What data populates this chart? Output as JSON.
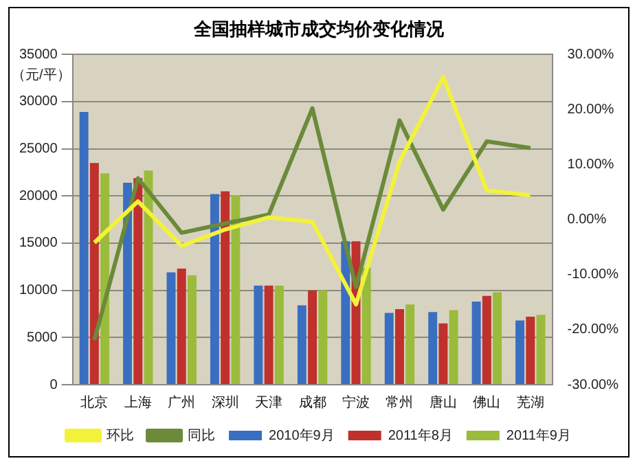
{
  "chart_data": {
    "type": "bar",
    "title": "全国抽样城市成交均价变化情况",
    "ylabel": "（元/平）",
    "categories": [
      "北京",
      "上海",
      "广州",
      "深圳",
      "天津",
      "成都",
      "宁波",
      "常州",
      "唐山",
      "佛山",
      "芜湖"
    ],
    "series": [
      {
        "name": "2010年9月",
        "color": "#3a6ec0",
        "values": [
          28900,
          21400,
          11900,
          20200,
          10500,
          8400,
          15200,
          7600,
          7700,
          8800,
          6800
        ]
      },
      {
        "name": "2011年8月",
        "color": "#c0302c",
        "values": [
          23500,
          21900,
          12300,
          20500,
          10500,
          10000,
          15200,
          8000,
          6500,
          9400,
          7200
        ]
      },
      {
        "name": "2011年9月",
        "color": "#9bbb3c",
        "values": [
          22400,
          22700,
          11600,
          20100,
          10500,
          10000,
          12400,
          8500,
          7900,
          9800,
          7400
        ]
      },
      {
        "name": "环比",
        "type": "line",
        "axis": "y2",
        "color": "#f2f23a",
        "values": [
          -4.2,
          3.3,
          -4.8,
          -1.8,
          0.4,
          -0.4,
          -15.4,
          10.5,
          25.9,
          5.3,
          4.4
        ]
      },
      {
        "name": "同比",
        "type": "line",
        "axis": "y2",
        "color": "#6b8a3a",
        "values": [
          -21.9,
          7.5,
          -2.4,
          -0.7,
          0.9,
          20.2,
          -12.3,
          18,
          1.8,
          14.2,
          13
        ]
      }
    ],
    "ylim": [
      0,
      35000
    ],
    "yticks": [
      0,
      5000,
      10000,
      15000,
      20000,
      25000,
      30000,
      35000
    ],
    "y2lim": [
      -30,
      30
    ],
    "y2ticks": [
      {
        "value": -30,
        "label": "-30.00%"
      },
      {
        "value": -20,
        "label": "-20.00%"
      },
      {
        "value": -10,
        "label": "-10.00%"
      },
      {
        "value": 0,
        "label": "0.00%"
      },
      {
        "value": 10,
        "label": "10.00%"
      },
      {
        "value": 20,
        "label": "20.00%"
      },
      {
        "value": 30,
        "label": "30.00%"
      }
    ],
    "grid": "y",
    "legend": "bottom",
    "marker": "none"
  }
}
